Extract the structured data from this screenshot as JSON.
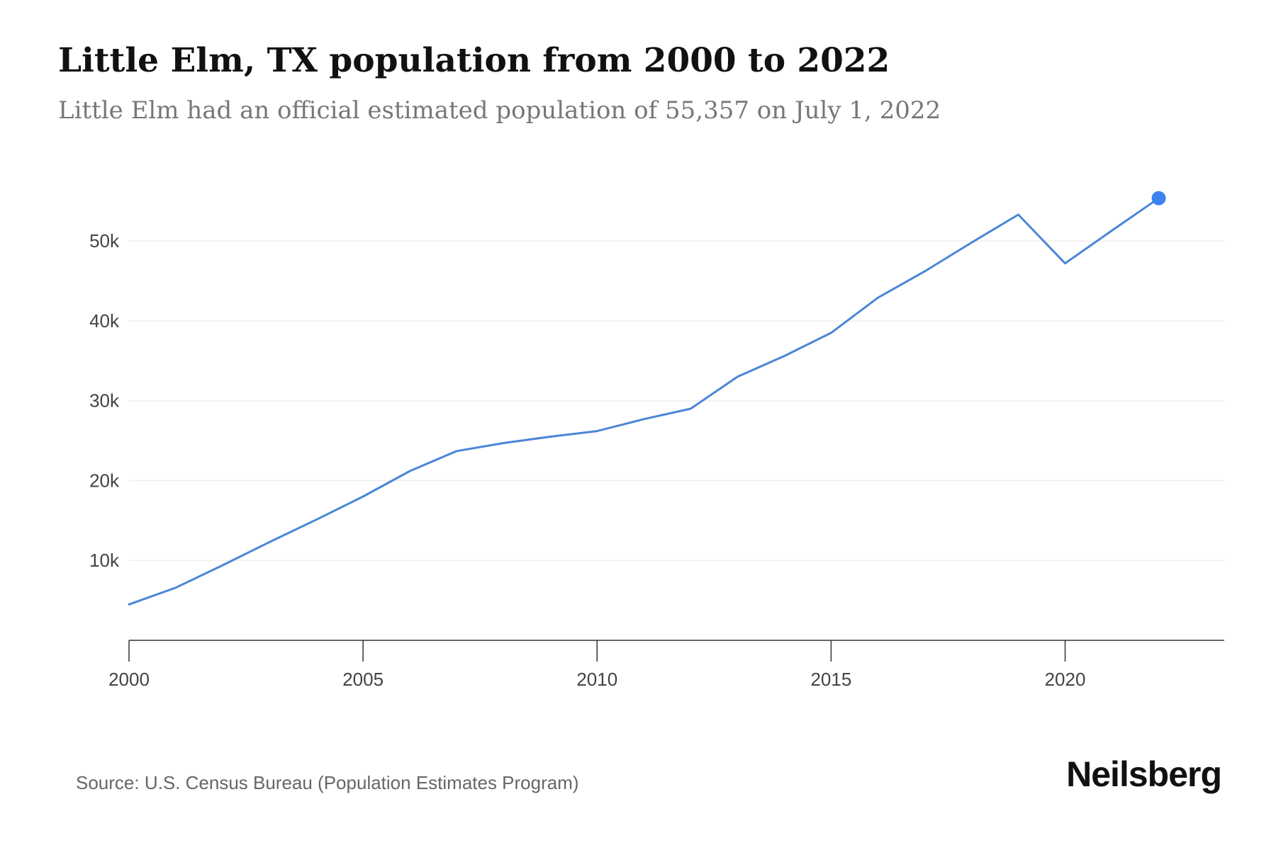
{
  "header": {
    "title": "Little Elm, TX population from 2000 to 2022",
    "subtitle": "Little Elm had an official estimated population of 55,357 on July 1, 2022"
  },
  "footer": {
    "source": "Source: U.S. Census Bureau (Population Estimates Program)",
    "brand": "Neilsberg"
  },
  "chart_data": {
    "type": "line",
    "title": "Little Elm, TX population from 2000 to 2022",
    "subtitle": "Little Elm had an official estimated population of 55,357 on July 1, 2022",
    "xlabel": "",
    "ylabel": "",
    "x": [
      2000,
      2001,
      2002,
      2003,
      2004,
      2005,
      2006,
      2007,
      2008,
      2009,
      2010,
      2011,
      2012,
      2013,
      2014,
      2015,
      2016,
      2017,
      2018,
      2019,
      2020,
      2021,
      2022
    ],
    "series": [
      {
        "name": "",
        "values": [
          4500,
          6600,
          9400,
          12300,
          15100,
          18000,
          21200,
          23700,
          24700,
          25500,
          26200,
          27700,
          29000,
          33000,
          35600,
          38500,
          42900,
          46200,
          49800,
          53300,
          47200,
          51300,
          55357
        ]
      }
    ],
    "xlim": [
      2000,
      2023.4
    ],
    "ylim": [
      0,
      58000
    ],
    "x_ticks": [
      2000,
      2005,
      2010,
      2015,
      2020
    ],
    "x_tick_labels": [
      "2000",
      "2005",
      "2010",
      "2015",
      "2020"
    ],
    "y_ticks": [
      10000,
      20000,
      30000,
      40000,
      50000
    ],
    "y_tick_labels": [
      "10k",
      "20k",
      "30k",
      "40k",
      "50k"
    ],
    "grid": true,
    "highlight_last_point": true,
    "colors": {
      "line": "#4a86d8",
      "marker": "#3d82f0",
      "grid": "#eeeeee",
      "axis": "#333333"
    }
  }
}
